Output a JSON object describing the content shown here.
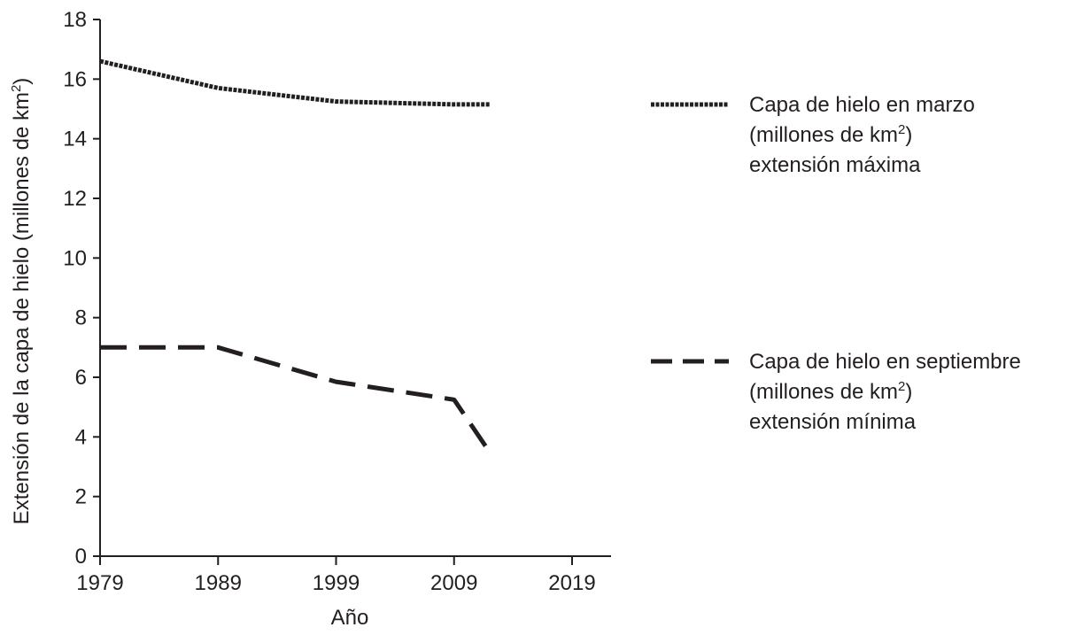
{
  "chart_data": {
    "type": "line",
    "xlabel": "Año",
    "ylabel": "Extensión de la capa de hielo (millones de km²)",
    "ylabel_parts": {
      "main": "Extensión de la capa de hielo (millones de km",
      "sup": "2",
      "end": ")"
    },
    "xlim": [
      1979,
      2019
    ],
    "ylim": [
      0,
      18
    ],
    "x_ticks": [
      1979,
      1989,
      1999,
      2009,
      2019
    ],
    "y_ticks": [
      0,
      2,
      4,
      6,
      8,
      10,
      12,
      14,
      16,
      18
    ],
    "grid": false,
    "legend_position": "right",
    "series": [
      {
        "name": "Capa de hielo en marzo (millones de km²) extensión máxima",
        "legend_lines": [
          "Capa de hielo en marzo",
          "(millones de km",
          "extensión máxima"
        ],
        "style": "dotted",
        "x": [
          1979,
          1989,
          1999,
          2009,
          2012
        ],
        "y": [
          16.6,
          15.7,
          15.25,
          15.15,
          15.15
        ]
      },
      {
        "name": "Capa de hielo en septiembre (millones de km²) extensión mínima",
        "legend_lines": [
          "Capa de hielo en septiembre",
          "(millones de km",
          "extensión mínima"
        ],
        "style": "dashed",
        "x": [
          1979,
          1989,
          1999,
          2009,
          2012
        ],
        "y": [
          7.0,
          7.0,
          5.85,
          5.25,
          3.5
        ]
      }
    ],
    "legend_sup": "2",
    "legend_close": ")"
  }
}
